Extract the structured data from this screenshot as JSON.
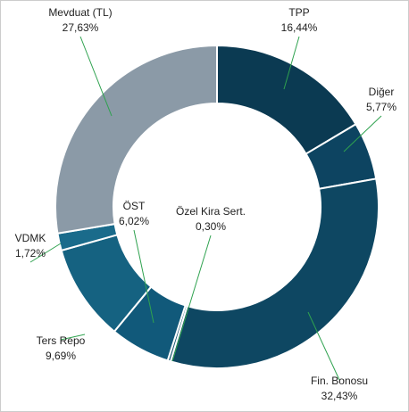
{
  "chart_data": {
    "type": "donut",
    "categories": [
      "TPP",
      "Diğer",
      "Fin. Bonosu",
      "Özel Kira Sert.",
      "ÖST",
      "Ters Repo",
      "VDMK",
      "Mevduat (TL)"
    ],
    "values": [
      16.44,
      5.77,
      32.43,
      0.3,
      6.02,
      9.69,
      1.72,
      27.63
    ],
    "value_labels": [
      "16,44%",
      "5,77%",
      "32,43%",
      "0,30%",
      "6,02%",
      "9,69%",
      "1,72%",
      "27,63%"
    ],
    "colors": [
      "#0b3a52",
      "#0d4461",
      "#0e4762",
      "#1a5672",
      "#11597a",
      "#156281",
      "#1a6b8b",
      "#8b9aa7"
    ]
  }
}
